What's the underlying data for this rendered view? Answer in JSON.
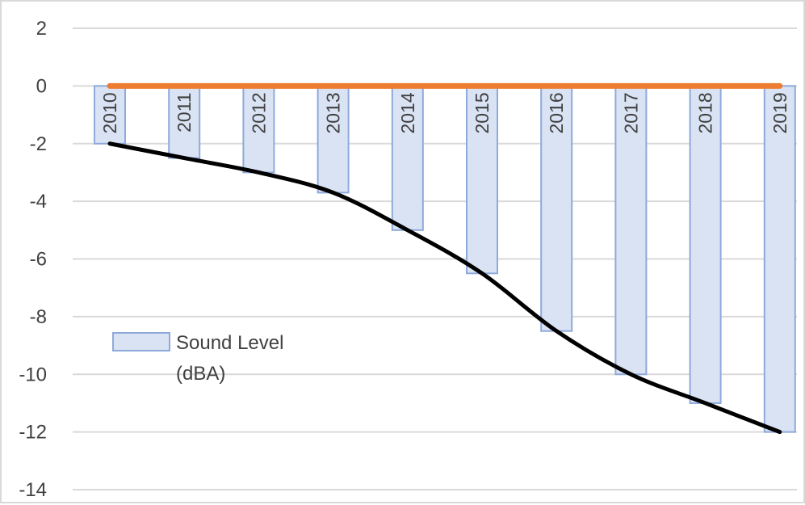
{
  "chart_data": {
    "type": "bar",
    "categories": [
      "2010",
      "2011",
      "2012",
      "2013",
      "2014",
      "2015",
      "2016",
      "2017",
      "2018",
      "2019"
    ],
    "series": [
      {
        "name": "Sound Level (dBA)",
        "type": "bar",
        "values": [
          -2,
          -2.5,
          -3,
          -3.7,
          -5,
          -6.5,
          -8.5,
          -10,
          -11,
          -12
        ]
      },
      {
        "type": "line",
        "values": [
          0,
          0,
          0,
          0,
          0,
          0,
          0,
          0,
          0,
          0
        ]
      },
      {
        "type": "line",
        "smooth": true,
        "values": [
          -2,
          -2.5,
          -3,
          -3.7,
          -5,
          -6.5,
          -8.5,
          -10,
          -11,
          -12
        ]
      }
    ],
    "ylim": [
      -14,
      2
    ],
    "yticks": [
      2,
      0,
      -2,
      -4,
      -6,
      -8,
      -10,
      -12,
      -14
    ],
    "grid": true,
    "legend": {
      "position": "left",
      "entries": [
        "Sound Level",
        "(dBA)"
      ]
    },
    "colors": {
      "bar_fill": "#dae3f3",
      "bar_edge": "#8eaadb",
      "orange_line": "#ed7d31",
      "black_line": "#000000",
      "grid": "#d9d9d9",
      "text": "#404040"
    }
  }
}
